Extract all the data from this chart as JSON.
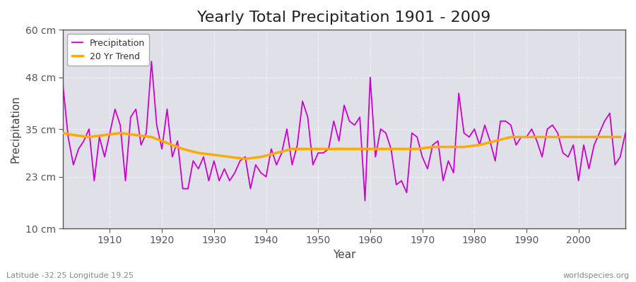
{
  "title": "Yearly Total Precipitation 1901 - 2009",
  "xlabel": "Year",
  "ylabel": "Precipitation",
  "subtitle": "Latitude -32.25 Longitude 19.25",
  "watermark": "worldspecies.org",
  "years": [
    1901,
    1902,
    1903,
    1904,
    1905,
    1906,
    1907,
    1908,
    1909,
    1910,
    1911,
    1912,
    1913,
    1914,
    1915,
    1916,
    1917,
    1918,
    1919,
    1920,
    1921,
    1922,
    1923,
    1924,
    1925,
    1926,
    1927,
    1928,
    1929,
    1930,
    1931,
    1932,
    1933,
    1934,
    1935,
    1936,
    1937,
    1938,
    1939,
    1940,
    1941,
    1942,
    1943,
    1944,
    1945,
    1946,
    1947,
    1948,
    1949,
    1950,
    1951,
    1952,
    1953,
    1954,
    1955,
    1956,
    1957,
    1958,
    1959,
    1960,
    1961,
    1962,
    1963,
    1964,
    1965,
    1966,
    1967,
    1968,
    1969,
    1970,
    1971,
    1972,
    1973,
    1974,
    1975,
    1976,
    1977,
    1978,
    1979,
    1980,
    1981,
    1982,
    1983,
    1984,
    1985,
    1986,
    1987,
    1988,
    1989,
    1990,
    1991,
    1992,
    1993,
    1994,
    1995,
    1996,
    1997,
    1998,
    1999,
    2000,
    2001,
    2002,
    2003,
    2004,
    2005,
    2006,
    2007,
    2008,
    2009
  ],
  "precip": [
    46,
    33,
    26,
    30,
    32,
    35,
    22,
    33,
    28,
    34,
    40,
    36,
    22,
    38,
    40,
    31,
    34,
    52,
    36,
    30,
    40,
    28,
    32,
    20,
    20,
    27,
    25,
    28,
    22,
    27,
    22,
    25,
    22,
    24,
    27,
    28,
    20,
    26,
    24,
    23,
    30,
    26,
    29,
    35,
    26,
    31,
    42,
    38,
    26,
    29,
    29,
    30,
    37,
    32,
    41,
    37,
    36,
    38,
    17,
    48,
    28,
    35,
    34,
    30,
    21,
    22,
    19,
    34,
    33,
    28,
    25,
    31,
    32,
    22,
    27,
    24,
    44,
    34,
    33,
    35,
    31,
    36,
    32,
    27,
    37,
    37,
    36,
    31,
    33,
    33,
    35,
    32,
    28,
    35,
    36,
    34,
    29,
    28,
    31,
    22,
    31,
    25,
    31,
    34,
    37,
    39,
    26,
    28,
    34
  ],
  "trend_years": [
    1901,
    1903,
    1906,
    1909,
    1912,
    1915,
    1918,
    1921,
    1924,
    1927,
    1930,
    1933,
    1936,
    1939,
    1942,
    1945,
    1948,
    1951,
    1954,
    1957,
    1960,
    1963,
    1966,
    1969,
    1972,
    1975,
    1978,
    1981,
    1984,
    1987,
    1990,
    1993,
    1996,
    1999,
    2002,
    2005,
    2008
  ],
  "trend_values": [
    34.0,
    33.5,
    33.0,
    33.5,
    34.0,
    33.5,
    33.0,
    31.5,
    30.0,
    29.0,
    28.5,
    28.0,
    27.5,
    28.0,
    29.0,
    30.0,
    30.0,
    30.0,
    30.0,
    30.0,
    30.0,
    30.0,
    30.0,
    30.0,
    30.5,
    30.5,
    30.5,
    31.0,
    32.0,
    33.0,
    33.0,
    33.0,
    33.0,
    33.0,
    33.0,
    33.0,
    33.0
  ],
  "precip_color": "#cc00cc",
  "trend_color": "#ffaa00",
  "fig_bg_color": "#ffffff",
  "plot_bg_color": "#e0e0e8",
  "ylim": [
    10,
    60
  ],
  "yticks": [
    10,
    23,
    35,
    48,
    60
  ],
  "ytick_labels": [
    "10 cm",
    "23 cm",
    "35 cm",
    "48 cm",
    "60 cm"
  ],
  "xticks": [
    1910,
    1920,
    1930,
    1940,
    1950,
    1960,
    1970,
    1980,
    1990,
    2000
  ],
  "grid_color": "#ffffff",
  "title_fontsize": 16,
  "axis_fontsize": 11,
  "tick_fontsize": 10,
  "legend_fontsize": 9
}
